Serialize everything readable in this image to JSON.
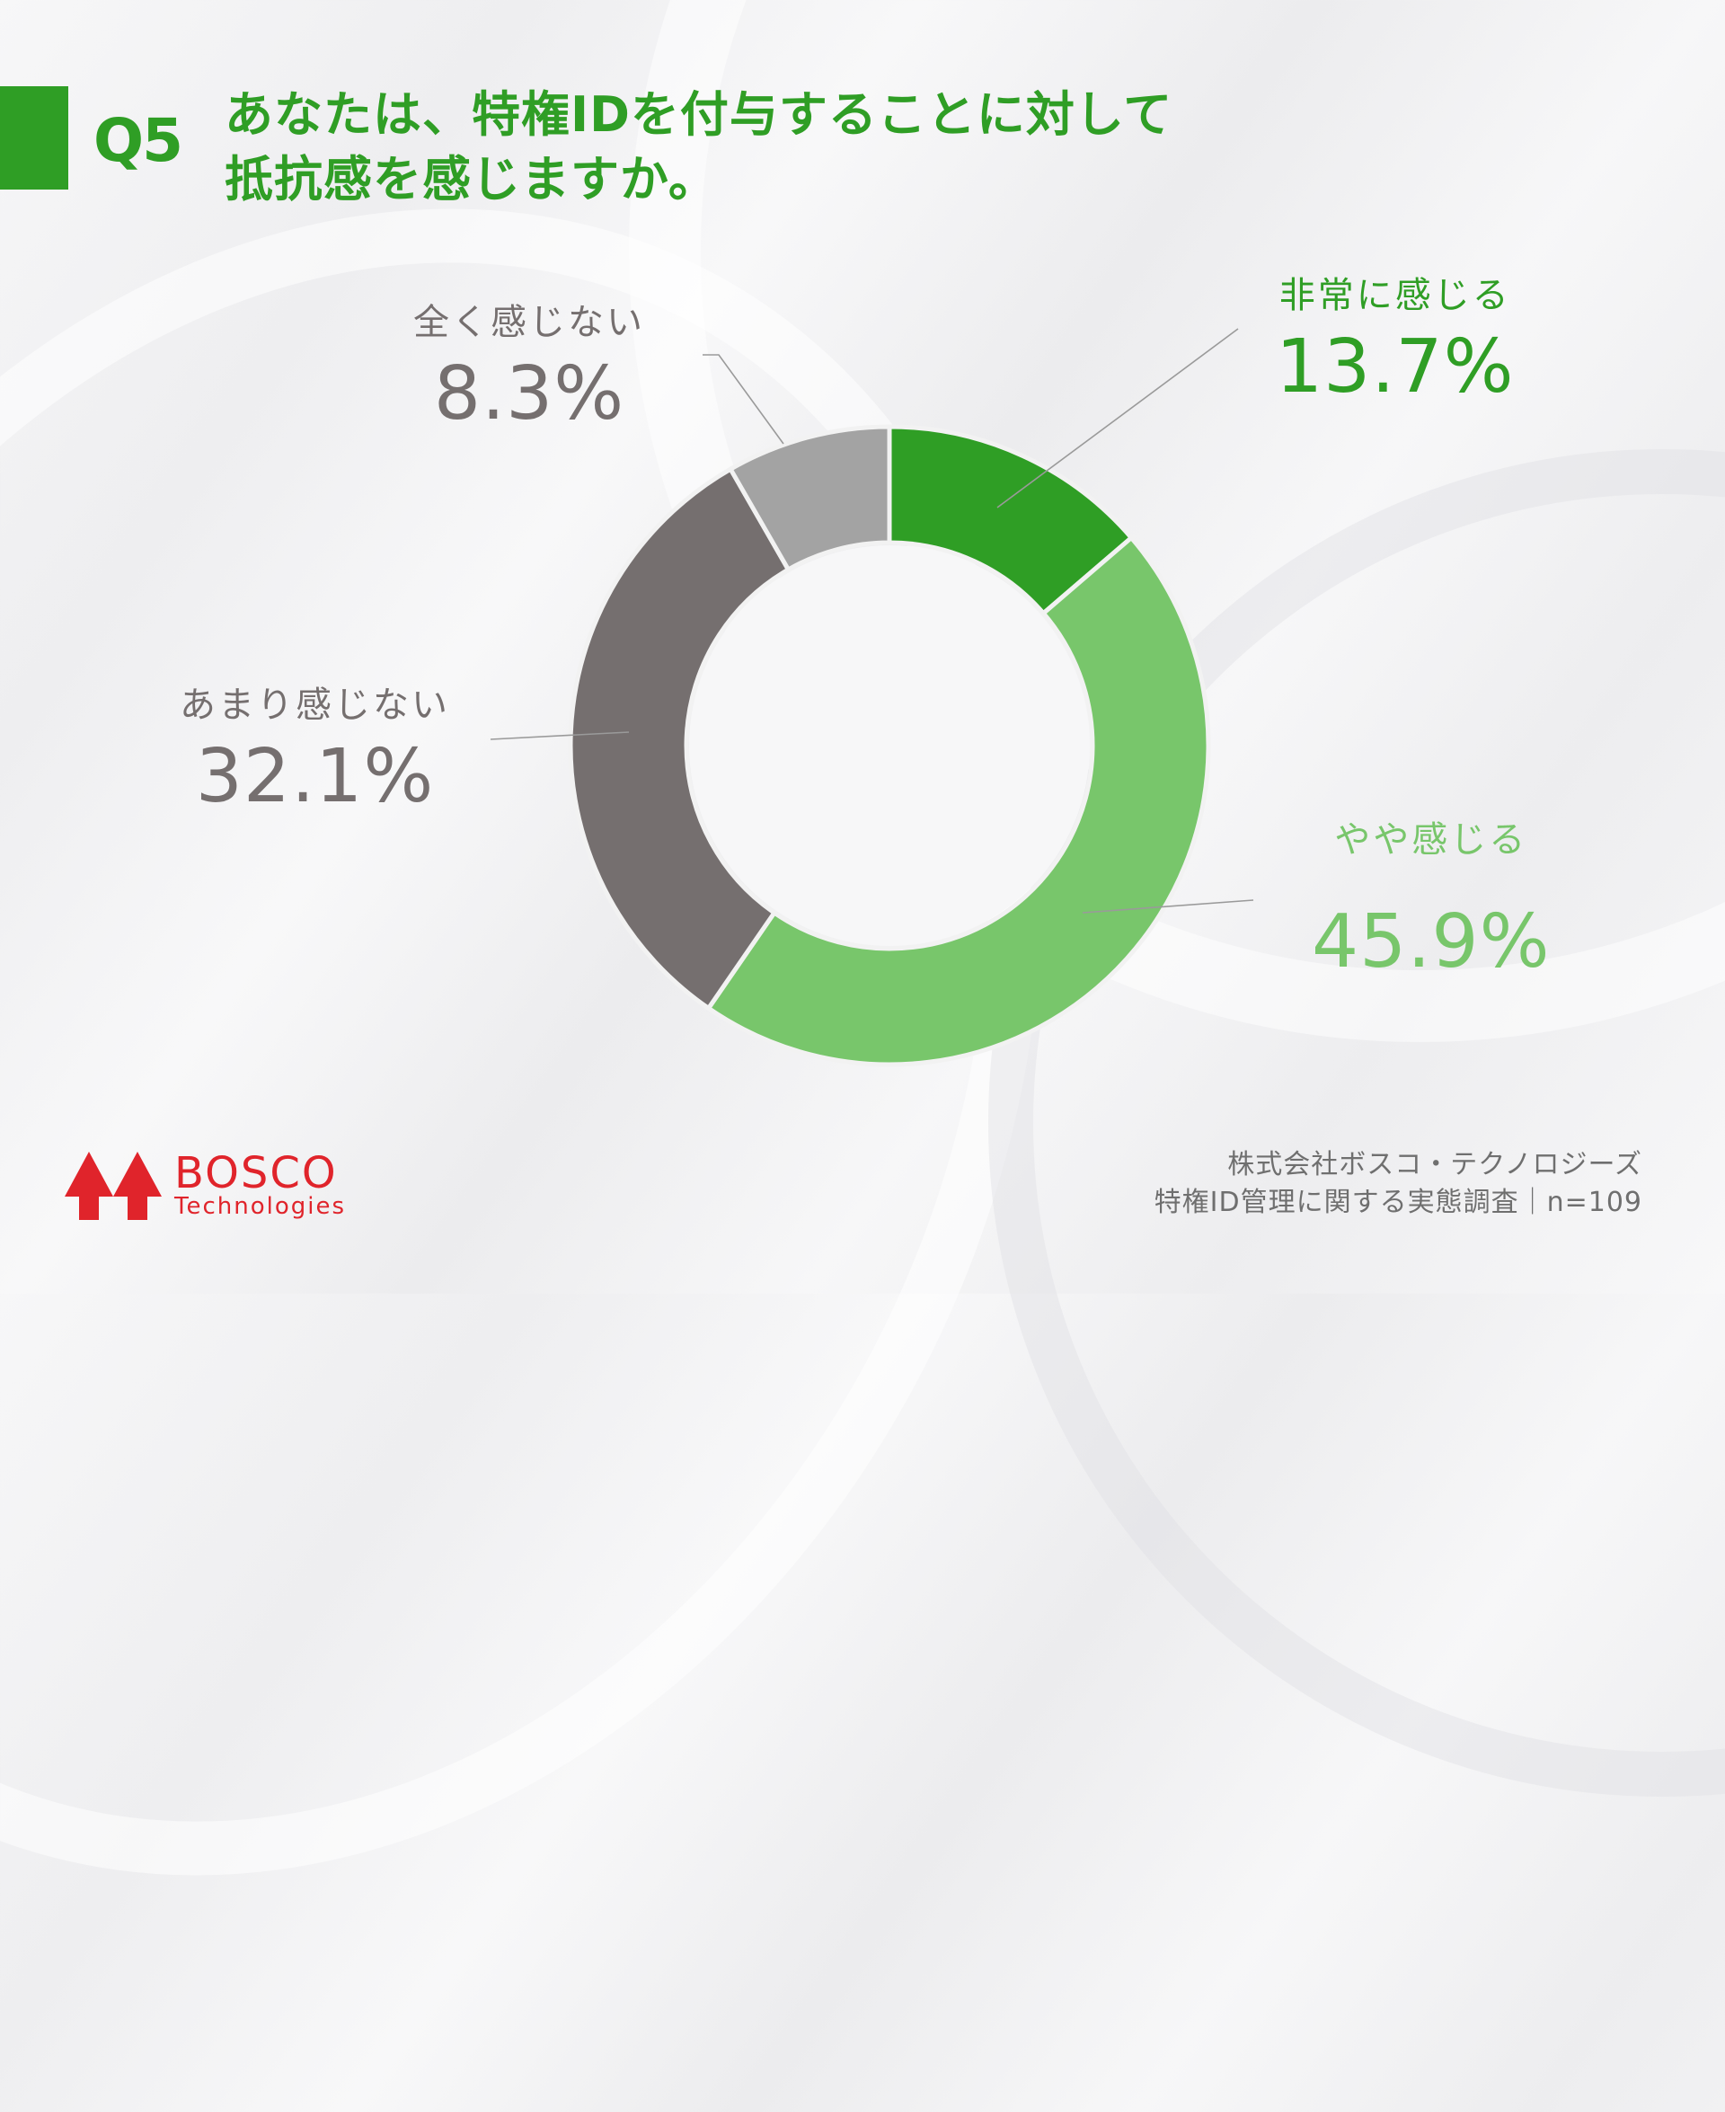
{
  "header": {
    "question_number": "Q5",
    "title_line1": "あなたは、特権IDを付与することに対して",
    "title_line2": "抵抗感を感じますか。"
  },
  "colors": {
    "brand_green": "#2f9e25",
    "light_green": "#78c66b",
    "dark_gray": "#756f6f",
    "light_gray": "#a3a3a3",
    "logo_red": "#e0242b",
    "footer_text": "#6f6f6f"
  },
  "chart_data": {
    "type": "pie",
    "subtype": "donut",
    "title": "あなたは、特権IDを付与することに対して抵抗感を感じますか。",
    "categories": [
      "非常に感じる",
      "やや感じる",
      "あまり感じない",
      "全く感じない"
    ],
    "values": [
      13.7,
      45.9,
      32.1,
      8.3
    ],
    "value_labels": [
      "13.7%",
      "45.9%",
      "32.1%",
      "8.3%"
    ],
    "colors": [
      "#2f9e25",
      "#78c66b",
      "#756f6f",
      "#a3a3a3"
    ],
    "start_angle": "12 o'clock, clockwise",
    "legend": "none (direct labels with leader lines)",
    "n": 109
  },
  "labels": [
    {
      "name": "非常に感じる",
      "pct": "13.7%"
    },
    {
      "name": "やや感じる",
      "pct": "45.9%"
    },
    {
      "name": "あまり感じない",
      "pct": "32.1%"
    },
    {
      "name": "全く感じない",
      "pct": "8.3%"
    }
  ],
  "logo": {
    "name": "BOSCO",
    "sub": "Technologies",
    "icon": "twin-tree-arrows-icon"
  },
  "footer": {
    "line1": "株式会社ボスコ・テクノロジーズ",
    "line2": "特権ID管理に関する実態調査｜n=109"
  }
}
